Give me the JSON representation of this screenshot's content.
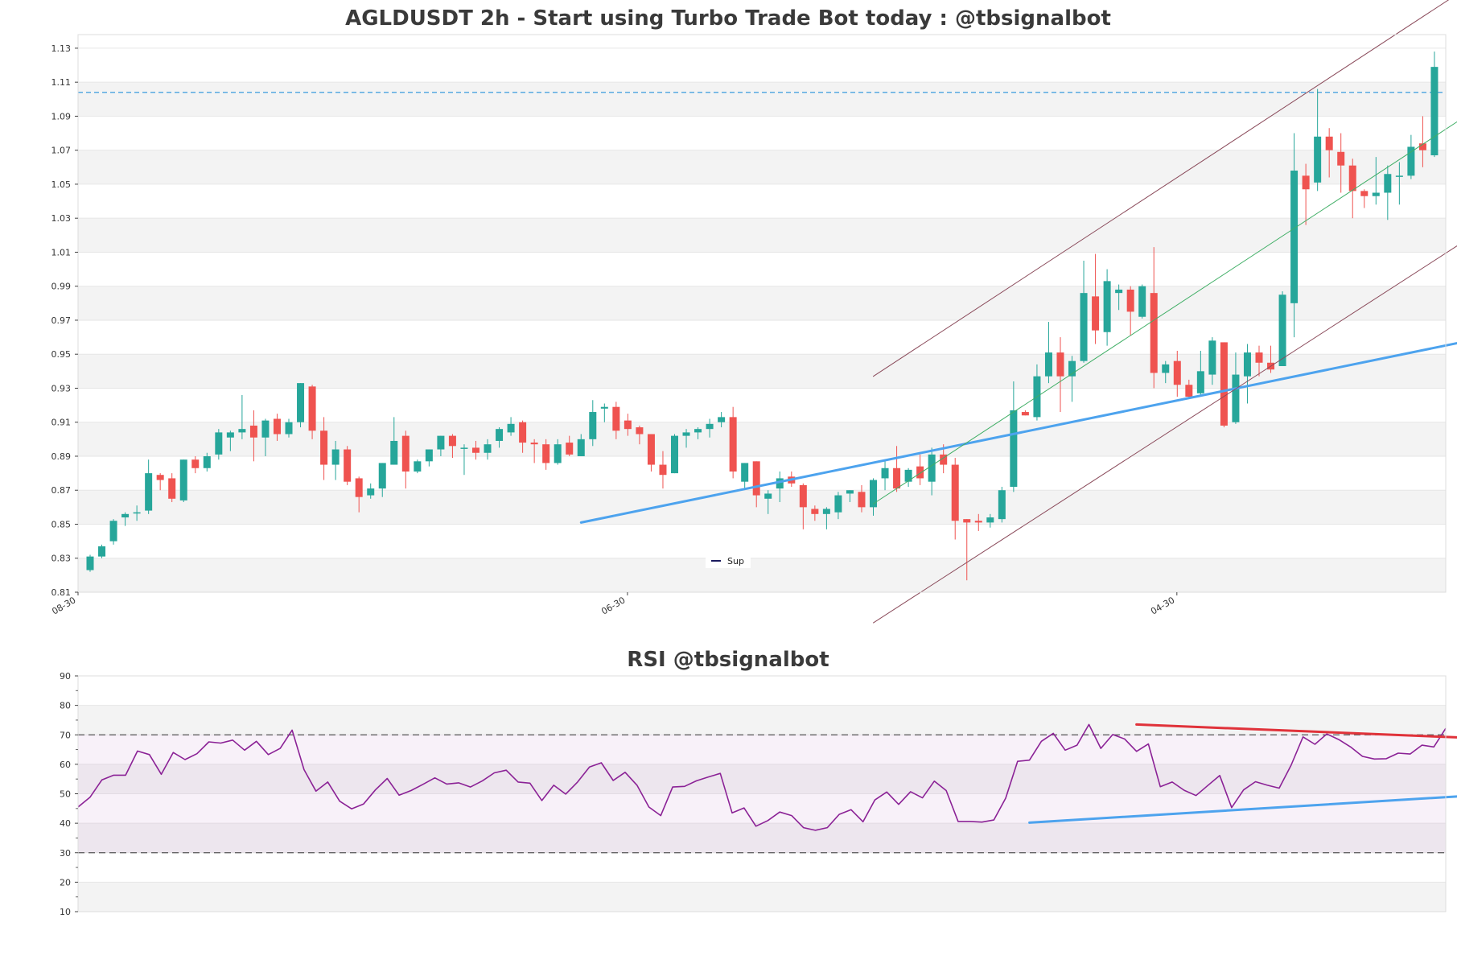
{
  "chart_data": [
    {
      "type": "candlestick",
      "title": "AGLDUSDT 2h - Start using Turbo Trade Bot today : @tbsignalbot",
      "ylim": [
        0.81,
        1.138
      ],
      "y_ticks": [
        "0.81",
        "0.83",
        "0.85",
        "0.87",
        "0.89",
        "0.91",
        "0.93",
        "0.95",
        "0.97",
        "0.99",
        "1.01",
        "1.03",
        "1.05",
        "1.07",
        "1.09",
        "1.11",
        "1.13"
      ],
      "x_ticks": [
        {
          "index": 0,
          "label": "08-30"
        },
        {
          "index": 47,
          "label": "06-30"
        },
        {
          "index": 94,
          "label": "04-30"
        }
      ],
      "horizontal_line": {
        "value": 1.104,
        "color": "#4aa3df",
        "style": "dashed"
      },
      "legend": [
        {
          "label": "Sup",
          "color": "#1a1a5e"
        }
      ],
      "trendlines": [
        {
          "name": "Sup",
          "from": [
            42,
            0.851
          ],
          "to": [
            118,
            0.958
          ],
          "color": "#4da3ee",
          "width": 3
        },
        {
          "from": [
            67,
            0.862
          ],
          "to": [
            117,
            1.087
          ],
          "color": "#3fae65",
          "width": 1
        },
        {
          "from": [
            67,
            0.937
          ],
          "to": [
            117,
            1.162
          ],
          "color": "#8a4a5a",
          "width": 1
        },
        {
          "from": [
            67,
            0.792
          ],
          "to": [
            117,
            1.014
          ],
          "color": "#8a4a5a",
          "width": 1
        }
      ],
      "colors": {
        "up": "#26a69a",
        "down": "#ef5350"
      },
      "candles": [
        [
          0.823,
          0.832,
          0.822,
          0.831
        ],
        [
          0.831,
          0.838,
          0.83,
          0.837
        ],
        [
          0.84,
          0.853,
          0.838,
          0.852
        ],
        [
          0.854,
          0.857,
          0.849,
          0.856
        ],
        [
          0.857,
          0.861,
          0.852,
          0.857
        ],
        [
          0.858,
          0.888,
          0.856,
          0.88
        ],
        [
          0.879,
          0.88,
          0.87,
          0.876
        ],
        [
          0.877,
          0.88,
          0.863,
          0.865
        ],
        [
          0.864,
          0.888,
          0.863,
          0.888
        ],
        [
          0.888,
          0.89,
          0.88,
          0.883
        ],
        [
          0.883,
          0.892,
          0.881,
          0.89
        ],
        [
          0.891,
          0.906,
          0.888,
          0.904
        ],
        [
          0.901,
          0.905,
          0.893,
          0.904
        ],
        [
          0.904,
          0.926,
          0.9,
          0.906
        ],
        [
          0.908,
          0.917,
          0.887,
          0.901
        ],
        [
          0.901,
          0.912,
          0.89,
          0.911
        ],
        [
          0.912,
          0.915,
          0.899,
          0.903
        ],
        [
          0.903,
          0.912,
          0.901,
          0.91
        ],
        [
          0.91,
          0.933,
          0.907,
          0.933
        ],
        [
          0.931,
          0.932,
          0.9,
          0.905
        ],
        [
          0.905,
          0.913,
          0.876,
          0.885
        ],
        [
          0.885,
          0.899,
          0.876,
          0.894
        ],
        [
          0.894,
          0.896,
          0.873,
          0.875
        ],
        [
          0.877,
          0.878,
          0.857,
          0.866
        ],
        [
          0.867,
          0.874,
          0.865,
          0.871
        ],
        [
          0.871,
          0.886,
          0.866,
          0.886
        ],
        [
          0.885,
          0.913,
          0.885,
          0.899
        ],
        [
          0.902,
          0.905,
          0.871,
          0.881
        ],
        [
          0.881,
          0.888,
          0.88,
          0.887
        ],
        [
          0.887,
          0.894,
          0.884,
          0.894
        ],
        [
          0.894,
          0.902,
          0.89,
          0.902
        ],
        [
          0.902,
          0.903,
          0.889,
          0.896
        ],
        [
          0.895,
          0.897,
          0.879,
          0.895
        ],
        [
          0.895,
          0.899,
          0.888,
          0.892
        ],
        [
          0.892,
          0.9,
          0.888,
          0.897
        ],
        [
          0.899,
          0.907,
          0.895,
          0.906
        ],
        [
          0.904,
          0.913,
          0.902,
          0.909
        ],
        [
          0.91,
          0.911,
          0.892,
          0.898
        ],
        [
          0.898,
          0.9,
          0.886,
          0.897
        ],
        [
          0.897,
          0.9,
          0.882,
          0.886
        ],
        [
          0.886,
          0.9,
          0.885,
          0.897
        ],
        [
          0.898,
          0.902,
          0.89,
          0.891
        ],
        [
          0.89,
          0.903,
          0.89,
          0.9
        ],
        [
          0.9,
          0.923,
          0.896,
          0.916
        ],
        [
          0.918,
          0.921,
          0.91,
          0.919
        ],
        [
          0.919,
          0.922,
          0.9,
          0.905
        ],
        [
          0.911,
          0.915,
          0.902,
          0.906
        ],
        [
          0.907,
          0.908,
          0.897,
          0.903
        ],
        [
          0.903,
          0.903,
          0.881,
          0.885
        ],
        [
          0.885,
          0.893,
          0.871,
          0.879
        ],
        [
          0.88,
          0.903,
          0.88,
          0.902
        ],
        [
          0.902,
          0.906,
          0.895,
          0.904
        ],
        [
          0.904,
          0.907,
          0.9,
          0.906
        ],
        [
          0.906,
          0.912,
          0.901,
          0.909
        ],
        [
          0.91,
          0.916,
          0.907,
          0.913
        ],
        [
          0.913,
          0.919,
          0.877,
          0.881
        ],
        [
          0.875,
          0.886,
          0.871,
          0.886
        ],
        [
          0.887,
          0.887,
          0.86,
          0.867
        ],
        [
          0.865,
          0.87,
          0.856,
          0.868
        ],
        [
          0.871,
          0.881,
          0.863,
          0.877
        ],
        [
          0.878,
          0.881,
          0.872,
          0.874
        ],
        [
          0.873,
          0.874,
          0.847,
          0.86
        ],
        [
          0.859,
          0.861,
          0.852,
          0.856
        ],
        [
          0.856,
          0.86,
          0.847,
          0.859
        ],
        [
          0.857,
          0.869,
          0.853,
          0.867
        ],
        [
          0.868,
          0.87,
          0.863,
          0.87
        ],
        [
          0.869,
          0.873,
          0.857,
          0.86
        ],
        [
          0.86,
          0.877,
          0.855,
          0.876
        ],
        [
          0.877,
          0.887,
          0.87,
          0.883
        ],
        [
          0.883,
          0.896,
          0.869,
          0.871
        ],
        [
          0.875,
          0.883,
          0.872,
          0.882
        ],
        [
          0.884,
          0.891,
          0.873,
          0.877
        ],
        [
          0.875,
          0.895,
          0.867,
          0.891
        ],
        [
          0.891,
          0.897,
          0.88,
          0.885
        ],
        [
          0.885,
          0.889,
          0.841,
          0.852
        ],
        [
          0.853,
          0.853,
          0.817,
          0.851
        ],
        [
          0.852,
          0.856,
          0.846,
          0.851
        ],
        [
          0.851,
          0.856,
          0.848,
          0.854
        ],
        [
          0.853,
          0.872,
          0.851,
          0.87
        ],
        [
          0.872,
          0.934,
          0.869,
          0.917
        ],
        [
          0.916,
          0.917,
          0.914,
          0.914
        ],
        [
          0.913,
          0.944,
          0.911,
          0.937
        ],
        [
          0.937,
          0.969,
          0.933,
          0.951
        ],
        [
          0.951,
          0.96,
          0.916,
          0.937
        ],
        [
          0.937,
          0.949,
          0.922,
          0.946
        ],
        [
          0.946,
          1.005,
          0.945,
          0.986
        ],
        [
          0.984,
          1.009,
          0.956,
          0.964
        ],
        [
          0.963,
          1.0,
          0.955,
          0.993
        ],
        [
          0.986,
          0.991,
          0.976,
          0.988
        ],
        [
          0.988,
          0.99,
          0.961,
          0.975
        ],
        [
          0.972,
          0.991,
          0.971,
          0.99
        ],
        [
          0.986,
          1.013,
          0.93,
          0.939
        ],
        [
          0.939,
          0.946,
          0.933,
          0.944
        ],
        [
          0.946,
          0.952,
          0.925,
          0.932
        ],
        [
          0.932,
          0.935,
          0.924,
          0.925
        ],
        [
          0.927,
          0.952,
          0.925,
          0.94
        ],
        [
          0.938,
          0.96,
          0.932,
          0.958
        ],
        [
          0.957,
          0.957,
          0.907,
          0.908
        ],
        [
          0.91,
          0.951,
          0.909,
          0.938
        ],
        [
          0.937,
          0.956,
          0.921,
          0.951
        ],
        [
          0.951,
          0.955,
          0.937,
          0.945
        ],
        [
          0.945,
          0.955,
          0.939,
          0.941
        ],
        [
          0.943,
          0.987,
          0.943,
          0.985
        ],
        [
          0.98,
          1.08,
          0.96,
          1.058
        ],
        [
          1.055,
          1.062,
          1.026,
          1.047
        ],
        [
          1.051,
          1.106,
          1.046,
          1.078
        ],
        [
          1.078,
          1.083,
          1.054,
          1.07
        ],
        [
          1.069,
          1.08,
          1.045,
          1.061
        ],
        [
          1.061,
          1.065,
          1.03,
          1.046
        ],
        [
          1.046,
          1.047,
          1.036,
          1.043
        ],
        [
          1.043,
          1.066,
          1.038,
          1.045
        ],
        [
          1.045,
          1.061,
          1.029,
          1.056
        ],
        [
          1.055,
          1.063,
          1.038,
          1.055
        ],
        [
          1.055,
          1.079,
          1.053,
          1.072
        ],
        [
          1.074,
          1.09,
          1.06,
          1.07
        ],
        [
          1.067,
          1.128,
          1.066,
          1.119
        ]
      ]
    },
    {
      "type": "line",
      "title": "RSI @tbsignalbot",
      "ylim": [
        10,
        90
      ],
      "y_ticks": [
        "10",
        "20",
        "30",
        "40",
        "50",
        "60",
        "70",
        "80",
        "90"
      ],
      "horizontal_lines": [
        {
          "value": 70,
          "color": "#555555",
          "style": "dashed"
        },
        {
          "value": 30,
          "color": "#555555",
          "style": "dashed"
        }
      ],
      "band": [
        30,
        70
      ],
      "trendlines": [
        {
          "from": [
            80,
            40.2
          ],
          "to": [
            118,
            49.6
          ],
          "color": "#4da3ee",
          "width": 3
        },
        {
          "from": [
            89,
            73.5
          ],
          "to": [
            118,
            68.8
          ],
          "color": "#e0323a",
          "width": 3
        }
      ],
      "series": [
        {
          "color": "#8b2296",
          "values": [
            45.5,
            48.8,
            54.7,
            56.3,
            56.3,
            64.5,
            63.3,
            56.6,
            64.0,
            61.6,
            63.6,
            67.6,
            67.2,
            68.2,
            64.8,
            67.8,
            63.3,
            65.4,
            71.6,
            58.2,
            50.9,
            54.0,
            47.5,
            44.9,
            46.5,
            51.3,
            55.2,
            49.5,
            51.1,
            53.2,
            55.4,
            53.3,
            53.7,
            52.3,
            54.4,
            57.1,
            58.0,
            54.0,
            53.6,
            47.7,
            52.9,
            49.9,
            54.0,
            59.1,
            60.5,
            54.5,
            57.3,
            52.9,
            45.5,
            42.6,
            52.3,
            52.5,
            54.4,
            55.7,
            56.9,
            43.5,
            45.2,
            39.0,
            40.9,
            43.8,
            42.6,
            38.5,
            37.6,
            38.5,
            43.0,
            44.6,
            40.5,
            47.9,
            50.6,
            46.4,
            50.7,
            48.6,
            54.3,
            51.1,
            40.6,
            40.6,
            40.4,
            41.1,
            48.5,
            61.0,
            61.4,
            67.8,
            70.5,
            64.8,
            66.5,
            73.5,
            65.4,
            70.1,
            68.6,
            64.4,
            66.9,
            52.4,
            54.0,
            51.2,
            49.4,
            52.8,
            56.2,
            45.3,
            51.3,
            54.1,
            52.9,
            51.9,
            59.7,
            69.3,
            66.8,
            70.3,
            68.4,
            65.9,
            62.7,
            61.8,
            61.9,
            63.8,
            63.5,
            66.5,
            65.9,
            72.2
          ]
        }
      ]
    }
  ]
}
